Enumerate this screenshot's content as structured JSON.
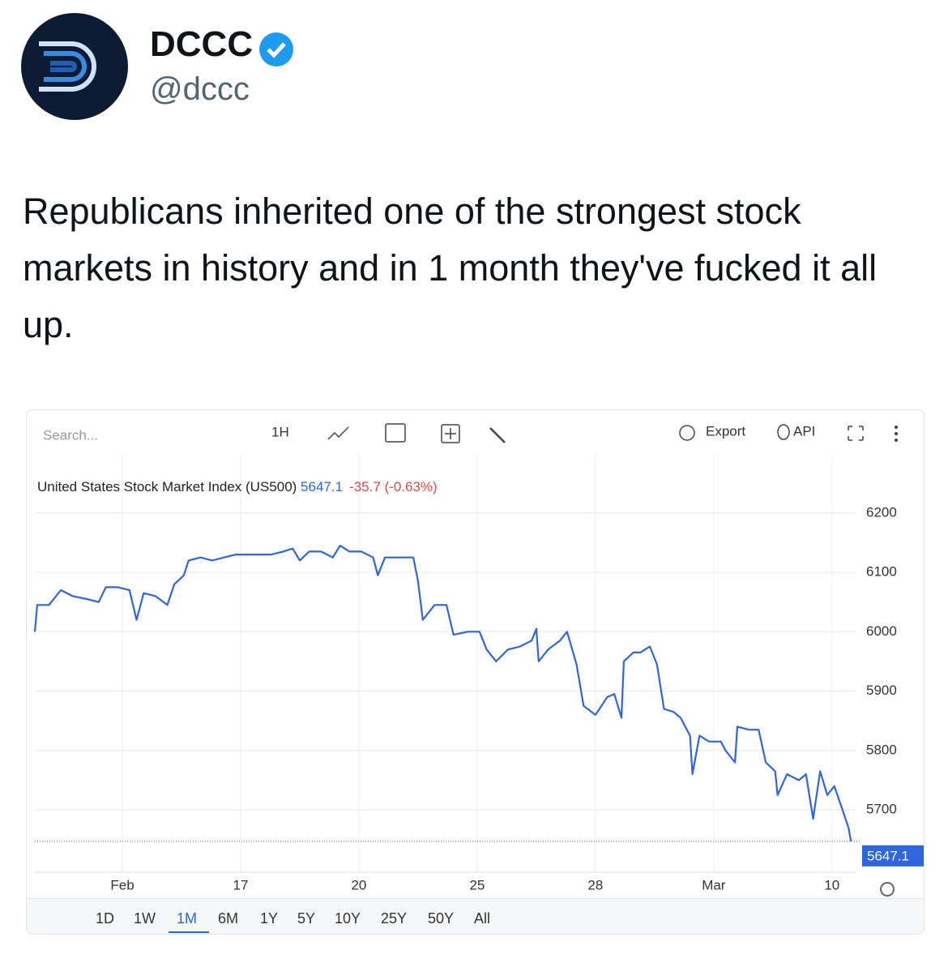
{
  "tweet": {
    "name": "DCCC",
    "handle": "@dccc",
    "text": "Republicans inherited one of the strongest stock markets in history and in 1 month they've fucked it all up."
  },
  "toolbar": {
    "search_placeholder": "Search...",
    "interval": "1H",
    "export": "Export",
    "api": "API"
  },
  "range_buttons": [
    "1D",
    "1W",
    "1M",
    "6M",
    "1Y",
    "5Y",
    "10Y",
    "25Y",
    "50Y",
    "All"
  ],
  "active_range": 2,
  "chart_data": {
    "type": "line",
    "title": "United States Stock Market Index (US500)",
    "last_price": 5647.1,
    "change": "-35.7 (-0.63%)",
    "color": "#2f66e0",
    "grid": true,
    "x": [
      -3.7,
      -3.6,
      -3.1,
      -2.6,
      -2.1,
      -1.5,
      -1.0,
      -0.7,
      -0.2,
      0.3,
      0.6,
      0.9,
      1.4,
      1.9,
      2.2,
      2.6,
      2.8,
      3.3,
      3.8,
      4.3,
      4.8,
      5.3,
      5.8,
      6.3,
      6.8,
      7.2,
      7.5,
      7.9,
      8.4,
      8.9,
      9.2,
      9.6,
      10.1,
      10.6,
      10.8,
      11.1,
      11.6,
      12.3,
      12.5,
      12.7,
      13.2,
      13.7,
      14.0,
      14.6,
      15.1,
      15.4,
      15.8,
      16.3,
      16.8,
      17.3,
      17.5,
      17.6,
      18.0,
      18.5,
      18.8,
      19.2,
      19.5,
      20.0,
      20.5,
      20.8,
      21.1,
      21.2,
      21.6,
      21.9,
      22.3,
      22.6,
      22.9,
      23.3,
      23.6,
      24.0,
      24.1,
      24.4,
      24.8,
      25.3,
      25.5,
      25.9,
      26.0,
      26.5,
      26.9,
      27.2,
      27.6,
      27.7,
      28.1,
      28.6,
      28.9,
      29.2,
      29.5,
      29.8,
      30.1,
      30.4,
      30.7,
      30.8
    ],
    "values": [
      6000,
      6045,
      6045,
      6070,
      6060,
      6055,
      6050,
      6075,
      6075,
      6070,
      6020,
      6065,
      6060,
      6045,
      6080,
      6095,
      6120,
      6125,
      6120,
      6125,
      6130,
      6130,
      6130,
      6130,
      6135,
      6140,
      6120,
      6135,
      6135,
      6125,
      6145,
      6135,
      6135,
      6125,
      6095,
      6125,
      6125,
      6125,
      6085,
      6020,
      6045,
      6045,
      5995,
      6000,
      6000,
      5970,
      5950,
      5970,
      5975,
      5985,
      6005,
      5950,
      5970,
      5985,
      6000,
      5945,
      5875,
      5860,
      5890,
      5895,
      5855,
      5950,
      5965,
      5965,
      5975,
      5945,
      5870,
      5865,
      5855,
      5825,
      5760,
      5825,
      5815,
      5815,
      5800,
      5780,
      5840,
      5835,
      5835,
      5780,
      5765,
      5725,
      5760,
      5750,
      5760,
      5685,
      5765,
      5725,
      5740,
      5705,
      5670,
      5647.1
    ],
    "xlim": [
      -3.7,
      31
    ],
    "xticks": [
      {
        "value": 0,
        "label": "Feb"
      },
      {
        "value": 5,
        "label": "17"
      },
      {
        "value": 10,
        "label": "20"
      },
      {
        "value": 15,
        "label": "25"
      },
      {
        "value": 20,
        "label": "28"
      },
      {
        "value": 25,
        "label": "Mar"
      },
      {
        "value": 30,
        "label": "10"
      }
    ],
    "ylim": [
      5595,
      6298
    ],
    "yticks": [
      5700,
      5800,
      5900,
      6000,
      6100,
      6200
    ]
  }
}
